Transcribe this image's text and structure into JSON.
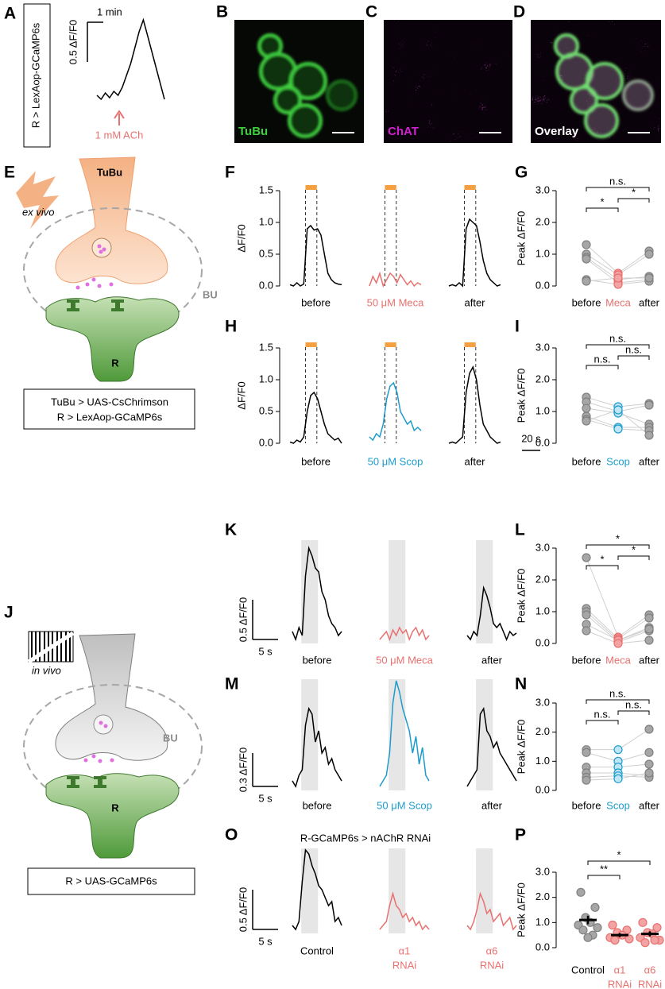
{
  "figure": {
    "A": {
      "genotype": "R > LexAop-GCaMP6s"
    },
    "B": {
      "letter": "B",
      "label": "TuBu"
    },
    "C": {
      "letter": "C",
      "label": "ChAT"
    },
    "D": {
      "letter": "D",
      "label": "Overlay"
    },
    "E": {
      "letter": "E",
      "prep": "ex vivo",
      "presynaptic": "TuBu",
      "region": "BU",
      "postsynaptic": "R",
      "genotype": [
        "TuBu > UAS-CsChrimson",
        "R > LexAop-GCaMP6s"
      ]
    },
    "J": {
      "letter": "J",
      "prep": "in vivo",
      "region": "BU",
      "postsynaptic": "R",
      "genotype": [
        "R > UAS-GCaMP6s"
      ]
    }
  },
  "chart_data": [
    {
      "type": "trace-scalebar",
      "letter": "A",
      "scale_x": "1 min",
      "scale_y": {
        "value": 0.5,
        "label": "0.5 ΔF/F0"
      },
      "annotation": "1 mM ACh",
      "annotation_color": "#e8716f",
      "conditions": [
        {
          "color": "#000000",
          "values": [
            0.05,
            0.0,
            0.08,
            0.02,
            0.1,
            0.05,
            0.15,
            0.3,
            0.45,
            0.65,
            0.85,
            1.0,
            0.8,
            0.6,
            0.4,
            0.2,
            0.0
          ]
        }
      ]
    },
    {
      "type": "trace-axis",
      "letter": "F",
      "ylabel": "ΔF/F0",
      "ylim": [
        0,
        1.5
      ],
      "yticks": [
        {
          "value": 0,
          "label": "0.0"
        },
        {
          "value": 0.5,
          "label": "0.5"
        },
        {
          "value": 1,
          "label": "1.0"
        },
        {
          "value": 1.5,
          "label": "1.5"
        }
      ],
      "stim_color": "#f5a040",
      "conditions": [
        {
          "label": "before",
          "color": "#000000",
          "values": [
            0.02,
            0.0,
            0.05,
            0.0,
            0.03,
            0.9,
            0.95,
            0.88,
            0.9,
            0.8,
            0.5,
            0.2,
            0.1,
            0.05,
            0.03,
            0.02
          ]
        },
        {
          "label": "50 μM Meca",
          "color": "#e8716f",
          "values": [
            0.0,
            0.15,
            0.05,
            0.2,
            0.0,
            0.1,
            0.2,
            0.15,
            0.05,
            0.18,
            0.1,
            0.02,
            0.08,
            0.0,
            0.05,
            0.02
          ]
        },
        {
          "label": "after",
          "color": "#000000",
          "values": [
            0.0,
            0.02,
            0.0,
            0.05,
            0.0,
            0.9,
            1.05,
            1.0,
            0.95,
            0.7,
            0.4,
            0.2,
            0.1,
            0.05,
            0.0,
            0.02
          ]
        }
      ]
    },
    {
      "type": "paired-dot",
      "letter": "G",
      "ylabel": "Peak ΔF/F0",
      "ylim": [
        0,
        3
      ],
      "yticks": [
        {
          "value": 0,
          "label": "0.0"
        },
        {
          "value": 1,
          "label": "1.0"
        },
        {
          "value": 2,
          "label": "2.0"
        },
        {
          "value": 3,
          "label": "3.0"
        }
      ],
      "categories": [
        "before",
        "Meca",
        "after"
      ],
      "category_colors": [
        "#000000",
        "#e8716f",
        "#000000"
      ],
      "point_colors": [
        "#a6a6a6",
        "#f3a3a3",
        "#a6a6a6"
      ],
      "values": [
        [
          1.3,
          1.0,
          0.9,
          0.85,
          0.2,
          0.15
        ],
        [
          0.4,
          0.35,
          0.2,
          0.1,
          0.05,
          0.25
        ],
        [
          1.1,
          1.0,
          0.3,
          0.2,
          0.15,
          0.25
        ]
      ],
      "significance": {
        "top": "n.s.",
        "left": "*",
        "right": "*"
      }
    },
    {
      "type": "trace-axis",
      "letter": "H",
      "ylabel": "ΔF/F0",
      "ylim": [
        0,
        1.5
      ],
      "yticks": [
        {
          "value": 0,
          "label": "0.0"
        },
        {
          "value": 0.5,
          "label": "0.5"
        },
        {
          "value": 1,
          "label": "1.0"
        },
        {
          "value": 1.5,
          "label": "1.5"
        }
      ],
      "stim_color": "#f5a040",
      "scale_x": "20 s",
      "conditions": [
        {
          "label": "before",
          "color": "#000000",
          "values": [
            0.02,
            0.0,
            0.05,
            0.02,
            0.1,
            0.5,
            0.75,
            0.8,
            0.7,
            0.5,
            0.3,
            0.15,
            0.1,
            0.05,
            0.08,
            0.0
          ]
        },
        {
          "label": "50 μM Scop",
          "color": "#1d9ccb",
          "values": [
            0.1,
            0.05,
            0.15,
            0.1,
            0.3,
            0.7,
            0.9,
            0.95,
            0.8,
            0.5,
            0.4,
            0.3,
            0.35,
            0.2,
            0.25,
            0.2
          ]
        },
        {
          "label": "after",
          "color": "#000000",
          "values": [
            0.0,
            0.02,
            0.0,
            0.05,
            0.1,
            0.8,
            1.1,
            1.2,
            1.0,
            0.6,
            0.3,
            0.2,
            0.1,
            0.05,
            0.0,
            0.02
          ]
        }
      ]
    },
    {
      "type": "paired-dot",
      "letter": "I",
      "ylabel": "Peak ΔF/F0",
      "ylim": [
        0,
        3
      ],
      "yticks": [
        {
          "value": 0,
          "label": "0.0"
        },
        {
          "value": 1,
          "label": "1.0"
        },
        {
          "value": 2,
          "label": "2.0"
        },
        {
          "value": 3,
          "label": "3.0"
        }
      ],
      "categories": [
        "before",
        "Scop",
        "after"
      ],
      "category_colors": [
        "#000000",
        "#1d9ccb",
        "#000000"
      ],
      "point_colors": [
        "#a6a6a6",
        "#bfe6f5",
        "#a6a6a6"
      ],
      "values": [
        [
          1.45,
          1.3,
          1.1,
          0.85,
          0.75,
          0.7
        ],
        [
          1.15,
          1.0,
          0.95,
          0.5,
          0.45,
          1.05
        ],
        [
          1.25,
          1.2,
          0.6,
          0.5,
          0.4,
          0.25
        ]
      ],
      "significance": {
        "top": "n.s.",
        "left": "n.s.",
        "right": "n.s."
      }
    },
    {
      "type": "trace-scalebar",
      "letter": "K",
      "scale_x": "5 s",
      "scale_y": {
        "value": 0.5,
        "label": "0.5 ΔF/F0"
      },
      "conditions": [
        {
          "label": "before",
          "color": "#000000",
          "values": [
            0.1,
            0.0,
            0.15,
            0.05,
            0.8,
            1.15,
            1.05,
            0.9,
            0.85,
            0.6,
            0.5,
            0.3,
            0.2,
            0.15,
            0.05,
            0.1
          ]
        },
        {
          "label": "50 μM Meca",
          "color": "#e8716f",
          "values": [
            0.0,
            0.05,
            0.1,
            0.0,
            0.12,
            0.05,
            0.15,
            0.08,
            0.12,
            0.0,
            0.1,
            0.15,
            0.05,
            0.12,
            0.0,
            0.05
          ]
        },
        {
          "label": "after",
          "color": "#000000",
          "values": [
            0.05,
            0.0,
            0.1,
            0.05,
            0.3,
            0.65,
            0.55,
            0.4,
            0.2,
            0.15,
            0.2,
            0.1,
            0.0,
            0.1,
            0.05,
            0.08
          ]
        }
      ]
    },
    {
      "type": "paired-dot",
      "letter": "L",
      "ylabel": "Peak ΔF/F0",
      "ylim": [
        0,
        3
      ],
      "yticks": [
        {
          "value": 0,
          "label": "0.0"
        },
        {
          "value": 1,
          "label": "1.0"
        },
        {
          "value": 2,
          "label": "2.0"
        },
        {
          "value": 3,
          "label": "3.0"
        }
      ],
      "categories": [
        "before",
        "Meca",
        "after"
      ],
      "category_colors": [
        "#000000",
        "#e8716f",
        "#000000"
      ],
      "point_colors": [
        "#a6a6a6",
        "#f3a3a3",
        "#a6a6a6"
      ],
      "values": [
        [
          2.7,
          1.1,
          1.0,
          0.9,
          0.6,
          0.4
        ],
        [
          0.2,
          0.15,
          0.1,
          0.05,
          0.1,
          0.0
        ],
        [
          0.9,
          0.8,
          0.5,
          0.4,
          0.45,
          0.1
        ]
      ],
      "significance": {
        "top": "*",
        "left": "*",
        "right": "*"
      }
    },
    {
      "type": "trace-scalebar",
      "letter": "M",
      "scale_x": "5 s",
      "scale_y": {
        "value": 0.3,
        "label": "0.3 ΔF/F0"
      },
      "conditions": [
        {
          "label": "before",
          "color": "#000000",
          "values": [
            0.05,
            0.0,
            0.1,
            0.15,
            0.55,
            0.7,
            0.65,
            0.4,
            0.5,
            0.3,
            0.35,
            0.2,
            0.25,
            0.15,
            0.1,
            0.05
          ]
        },
        {
          "label": "50 μM Scop",
          "color": "#1d9ccb",
          "values": [
            0.0,
            0.05,
            0.1,
            0.3,
            0.75,
            0.95,
            0.85,
            0.7,
            0.6,
            0.5,
            0.3,
            0.45,
            0.2,
            0.35,
            0.1,
            0.05
          ]
        },
        {
          "label": "after",
          "color": "#000000",
          "values": [
            0.0,
            0.05,
            0.1,
            0.15,
            0.65,
            0.7,
            0.5,
            0.45,
            0.35,
            0.4,
            0.3,
            0.25,
            0.2,
            0.15,
            0.1,
            0.05
          ]
        }
      ]
    },
    {
      "type": "paired-dot",
      "letter": "N",
      "ylabel": "Peak ΔF/F0",
      "ylim": [
        0,
        3
      ],
      "yticks": [
        {
          "value": 0,
          "label": "0.0"
        },
        {
          "value": 1,
          "label": "1.0"
        },
        {
          "value": 2,
          "label": "2.0"
        },
        {
          "value": 3,
          "label": "3.0"
        }
      ],
      "categories": [
        "before",
        "Scop",
        "after"
      ],
      "category_colors": [
        "#000000",
        "#1d9ccb",
        "#000000"
      ],
      "point_colors": [
        "#a6a6a6",
        "#bfe6f5",
        "#a6a6a6"
      ],
      "values": [
        [
          1.4,
          1.3,
          0.8,
          0.6,
          0.45,
          0.35
        ],
        [
          1.4,
          1.0,
          0.8,
          0.6,
          0.5,
          0.4
        ],
        [
          2.1,
          1.3,
          0.9,
          0.5,
          0.45,
          0.6
        ]
      ],
      "significance": {
        "top": "n.s.",
        "left": "n.s.",
        "right": "n.s."
      }
    },
    {
      "type": "trace-scalebar",
      "letter": "O",
      "title": "R-GCaMP6s > nAChR RNAi",
      "scale_x": "5 s",
      "scale_y": {
        "value": 0.5,
        "label": "0.5 ΔF/F0"
      },
      "conditions": [
        {
          "label": [
            "Control"
          ],
          "color": "#000000",
          "values": [
            0.05,
            0.0,
            0.1,
            0.6,
            1.0,
            0.95,
            0.8,
            0.7,
            0.55,
            0.5,
            0.4,
            0.3,
            0.35,
            0.1,
            0.15,
            0.05
          ]
        },
        {
          "label": [
            "α1",
            "RNAi"
          ],
          "color": "#e8716f",
          "values": [
            0.0,
            0.05,
            0.1,
            0.3,
            0.45,
            0.3,
            0.25,
            0.15,
            0.2,
            0.1,
            0.15,
            0.05,
            0.1,
            0.0,
            0.05,
            0.0
          ]
        },
        {
          "label": [
            "α6",
            "RNAi"
          ],
          "color": "#e8716f",
          "values": [
            0.05,
            0.0,
            0.1,
            0.25,
            0.45,
            0.35,
            0.2,
            0.25,
            0.1,
            0.15,
            0.2,
            0.05,
            0.1,
            0.15,
            0.0,
            0.05
          ]
        }
      ]
    },
    {
      "type": "dot-mean-sem",
      "letter": "P",
      "ylabel": "Peak ΔF/F0",
      "ylim": [
        0,
        3
      ],
      "yticks": [
        {
          "value": 0,
          "label": "0.0"
        },
        {
          "value": 1,
          "label": "1.0"
        },
        {
          "value": 2,
          "label": "2.0"
        },
        {
          "value": 3,
          "label": "3.0"
        }
      ],
      "categories": [
        "Control",
        [
          "α1",
          "RNAi"
        ],
        [
          "α6",
          "RNAi"
        ]
      ],
      "category_colors": [
        "#000000",
        "#e8716f",
        "#e8716f"
      ],
      "point_colors": [
        "#a6a6a6",
        "#f3a3a3",
        "#f3a3a3"
      ],
      "values": [
        [
          2.2,
          1.6,
          1.2,
          1.0,
          0.9,
          0.8,
          0.7,
          0.5,
          0.4
        ],
        [
          0.9,
          0.7,
          0.6,
          0.5,
          0.4,
          0.35,
          0.3
        ],
        [
          1.0,
          0.8,
          0.6,
          0.55,
          0.4,
          0.3,
          0.2,
          0.3
        ]
      ],
      "means": [
        1.1,
        0.5,
        0.55
      ],
      "sem": [
        0.17,
        0.08,
        0.1
      ],
      "significance": {
        "top": "*",
        "left": "**"
      }
    }
  ]
}
